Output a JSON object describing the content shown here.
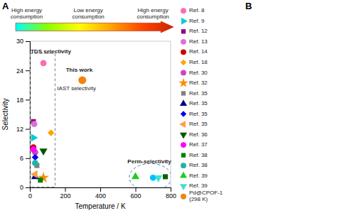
{
  "chart_data": {
    "type": "scatter",
    "xlabel": "Temperature / K",
    "ylabel": "Selectivity",
    "xlim": [
      0,
      800
    ],
    "ylim": [
      0,
      30
    ],
    "xticks": [
      0,
      200,
      400,
      600,
      800
    ],
    "yticks": [
      0,
      6,
      12,
      18,
      24,
      30
    ],
    "grid": false,
    "panel_labels": [
      "A",
      "B"
    ],
    "arrow": {
      "colors": [
        "#00FFFF",
        "#88FF00",
        "#FFFF00",
        "#FFA500",
        "#FF4500",
        "#CC2200"
      ],
      "labels": [
        "High energy\nconsumption",
        "Low energy\nconsumption",
        "High energy\nconsumption"
      ]
    },
    "tds_box": {
      "x0": 2,
      "y0": 0.1,
      "x1": 143,
      "y1": 27.5
    },
    "perm_ellipse": {
      "cx": 685,
      "cy": 2.1,
      "rx": 120,
      "ry": 2.8
    },
    "points": [
      {
        "x": 77,
        "y": 25.5,
        "color": "#FF69B4",
        "marker": "o"
      },
      {
        "x": 20,
        "y": 10.2,
        "color": "#00CED1",
        "marker": ">"
      },
      {
        "x": 20,
        "y": 13.5,
        "color": "#8B008B",
        "marker": "s"
      },
      {
        "x": 25,
        "y": 13.0,
        "color": "#DA70D6",
        "marker": "o"
      },
      {
        "x": 20,
        "y": 8.2,
        "color": "#CC0000",
        "marker": "o"
      },
      {
        "x": 120,
        "y": 11.2,
        "color": "#FFA500",
        "marker": "D"
      },
      {
        "x": 30,
        "y": 7.2,
        "color": "#CC44CC",
        "marker": "o"
      },
      {
        "x": 77,
        "y": 2.0,
        "color": "#FF8C00",
        "marker": "*"
      },
      {
        "x": 40,
        "y": 4.5,
        "color": "#808080",
        "marker": "s"
      },
      {
        "x": 30,
        "y": 2.2,
        "color": "#000080",
        "marker": "^"
      },
      {
        "x": 30,
        "y": 6.2,
        "color": "#0000EE",
        "marker": "D"
      },
      {
        "x": 30,
        "y": 2.7,
        "color": "#FFA040",
        "marker": "<"
      },
      {
        "x": 77,
        "y": 7.5,
        "color": "#005500",
        "marker": "v"
      },
      {
        "x": 20,
        "y": 7.8,
        "color": "#FF00FF",
        "marker": "o"
      },
      {
        "x": 60,
        "y": 1.5,
        "color": "#008000",
        "marker": "s"
      },
      {
        "x": 30,
        "y": 5.0,
        "color": "#20B2AA",
        "marker": "o"
      },
      {
        "x": 600,
        "y": 2.2,
        "color": "#22CC22",
        "marker": "^"
      },
      {
        "x": 700,
        "y": 2.0,
        "color": "#00BFFF",
        "marker": "o"
      },
      {
        "x": 730,
        "y": 2.0,
        "color": "#40E0D0",
        "marker": "v"
      },
      {
        "x": 770,
        "y": 2.2,
        "color": "#006400",
        "marker": "s"
      }
    ],
    "this_work": {
      "x": 298,
      "y": 22,
      "color": "#F5820A",
      "marker": "o"
    },
    "annotations": [
      {
        "text": "This work",
        "x": 205,
        "y": 24.0
      },
      {
        "text": "IAST selectivity",
        "x": 155,
        "y": 20.2
      },
      {
        "text": "TDS selectivity",
        "x": 4,
        "y": 27.8
      },
      {
        "text": "Perm-selectivity",
        "x": 555,
        "y": 5.2
      }
    ],
    "legend_entries": [
      {
        "color": "#FF69B4",
        "marker": "o",
        "label": "Ref. 8"
      },
      {
        "color": "#00CED1",
        "marker": ">",
        "label": "Ref. 9"
      },
      {
        "color": "#8B008B",
        "marker": "s",
        "label": "Ref. 12"
      },
      {
        "color": "#DA70D6",
        "marker": "o",
        "label": "Ref. 13"
      },
      {
        "color": "#CC0000",
        "marker": "o",
        "label": "Ref. 14"
      },
      {
        "color": "#FFA500",
        "marker": "D",
        "label": "Ref. 18"
      },
      {
        "color": "#CC44CC",
        "marker": "o",
        "label": "Ref. 30"
      },
      {
        "color": "#FF8C00",
        "marker": "*",
        "label": "Ref. 32"
      },
      {
        "color": "#808080",
        "marker": "s",
        "label": "Ref. 35"
      },
      {
        "color": "#000080",
        "marker": "^",
        "label": "Ref. 35"
      },
      {
        "color": "#0000EE",
        "marker": "D",
        "label": "Ref. 35"
      },
      {
        "color": "#FFA040",
        "marker": "<",
        "label": "Ref. 35"
      },
      {
        "color": "#005500",
        "marker": "v",
        "label": "Ref. 36"
      },
      {
        "color": "#FF00FF",
        "marker": "o",
        "label": "Ref. 37"
      },
      {
        "color": "#008000",
        "marker": "s",
        "label": "Ref. 38"
      },
      {
        "color": "#20B2AA",
        "marker": "o",
        "label": "Ref. 38"
      },
      {
        "color": "#22CC22",
        "marker": "^",
        "label": "Ref. 39"
      },
      {
        "color": "#40E0D0",
        "marker": "v",
        "label": "Ref. 39"
      },
      {
        "color": "#F5820A",
        "marker": "o",
        "label": "Pd@CPOF-1\n(298 K)"
      }
    ]
  }
}
